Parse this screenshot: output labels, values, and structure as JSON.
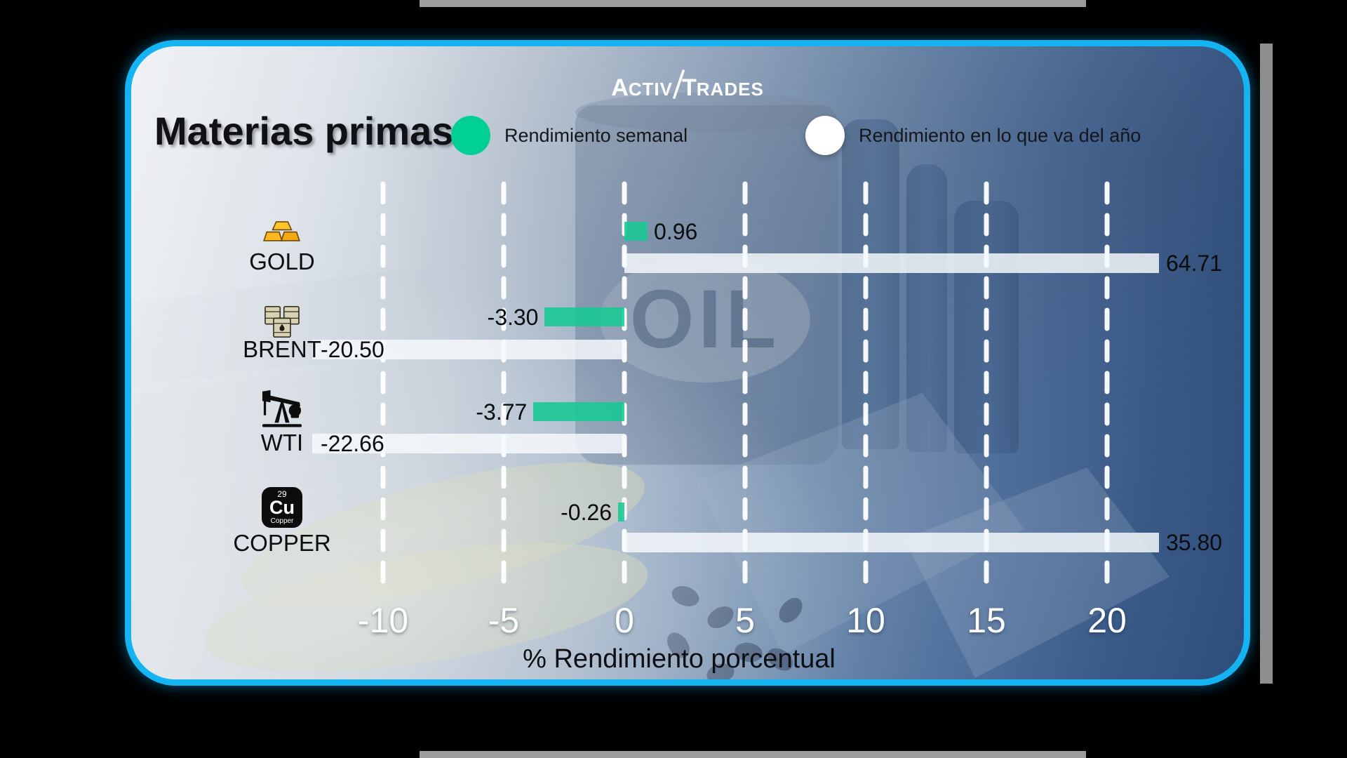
{
  "brand": {
    "part1": "A",
    "part2": "CTIV",
    "part3": "T",
    "part4": "RADES"
  },
  "header": {
    "title": "Materias primas"
  },
  "legend": {
    "weekly": {
      "label": "Rendimiento semanal",
      "color": "#00d093"
    },
    "ytd": {
      "label": "Rendimiento en lo que va del año",
      "color": "#ffffff"
    }
  },
  "chart_data": {
    "type": "bar",
    "orientation": "horizontal",
    "title": "Materias primas",
    "categories": [
      "GOLD",
      "BRENT",
      "WTI",
      "COPPER"
    ],
    "series": [
      {
        "name": "Rendimiento semanal",
        "color": "#00d093",
        "values": [
          0.96,
          -3.3,
          -3.77,
          -0.26
        ]
      },
      {
        "name": "Rendimiento en lo que va del año",
        "color": "#ffffff",
        "values": [
          64.71,
          -20.5,
          -22.66,
          35.8
        ]
      }
    ],
    "xlabel": "% Rendimiento porcentual",
    "x_ticks": [
      "-10",
      "-5",
      "0",
      "5",
      "10",
      "15",
      "20"
    ],
    "x_tick_values": [
      -10,
      -5,
      0,
      5,
      10,
      15,
      20
    ],
    "xlim": [
      -13,
      22.3
    ],
    "grid": "vertical-dashed-white",
    "legend_position": "top"
  },
  "rows": [
    {
      "label": "GOLD",
      "icon": "gold-bars-icon",
      "weekly_label": "0.96",
      "ytd_label": "64.71"
    },
    {
      "label": "BRENT",
      "icon": "oil-barrels-icon",
      "weekly_label": "-3.30",
      "ytd_label": "-20.50"
    },
    {
      "label": "WTI",
      "icon": "pump-jack-icon",
      "weekly_label": "-3.77",
      "ytd_label": "-22.66"
    },
    {
      "label": "COPPER",
      "icon": "copper-element-icon",
      "weekly_label": "-0.26",
      "ytd_label": "35.80"
    }
  ],
  "copper_icon": {
    "atomic_number": "29",
    "symbol": "Cu",
    "name": "Copper"
  },
  "background": {
    "oil_text": "OIL"
  }
}
